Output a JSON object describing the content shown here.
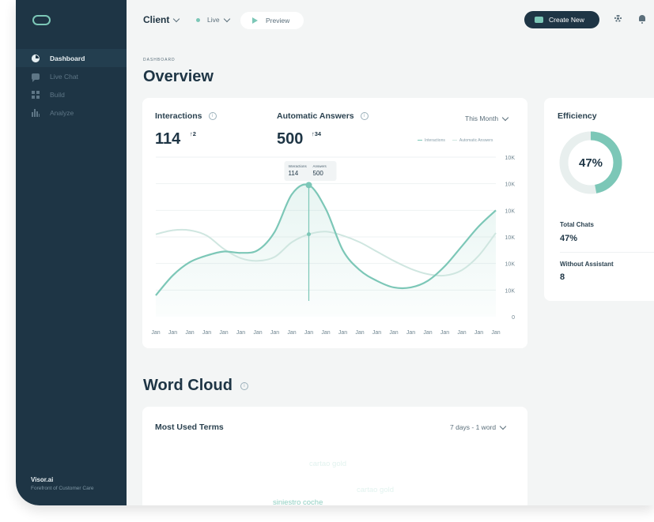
{
  "sidebar": {
    "items": [
      {
        "label": "Dashboard",
        "icon": "pie-chart-icon",
        "active": true
      },
      {
        "label": "Live Chat",
        "icon": "chat-icon"
      },
      {
        "label": "Build",
        "icon": "grid-icon"
      },
      {
        "label": "Analyze",
        "icon": "bar-chart-icon"
      }
    ],
    "brand_name": "Visor.ai",
    "brand_tagline": "Forefront of Customer Care"
  },
  "topbar": {
    "client_label": "Client",
    "status_label": "Live",
    "preview_label": "Preview",
    "create_label": "Create New"
  },
  "overview": {
    "eyebrow": "DASHBOARD",
    "title": "Overview",
    "interactions_label": "Interactions",
    "interactions_value": "114",
    "interactions_delta": "↑2",
    "auto_label": "Automatic Answers",
    "auto_value": "500",
    "auto_delta": "↑34",
    "period_label": "This Month",
    "info_glyph": "i"
  },
  "chart_data": {
    "type": "line",
    "x": [
      "Jan",
      "Jan",
      "Jan",
      "Jan",
      "Jan",
      "Jan",
      "Jan",
      "Jan",
      "Jan",
      "Jan",
      "Jan",
      "Jan",
      "Jan",
      "Jan",
      "Jan",
      "Jan",
      "Jan",
      "Jan",
      "Jan",
      "Jan",
      "Jan"
    ],
    "y_ticks": [
      "0",
      "10K",
      "10K",
      "10K",
      "10K",
      "10K",
      "10K"
    ],
    "series": [
      {
        "name": "Interactions",
        "values": [
          0.8,
          1.55,
          2.05,
          2.3,
          2.45,
          2.4,
          2.5,
          3.2,
          4.6,
          4.95,
          4.05,
          2.5,
          1.75,
          1.35,
          1.1,
          1.1,
          1.35,
          1.9,
          2.65,
          3.4,
          4.0
        ]
      },
      {
        "name": "Automatic Answers",
        "values": [
          3.1,
          3.25,
          3.25,
          3.05,
          2.55,
          2.2,
          2.1,
          2.25,
          2.8,
          3.1,
          3.2,
          3.05,
          2.8,
          2.45,
          2.1,
          1.8,
          1.6,
          1.55,
          1.75,
          2.3,
          3.15
        ]
      }
    ],
    "tooltip": {
      "labels": [
        "Interactions",
        "Answers"
      ],
      "values": [
        "114",
        "500"
      ],
      "index": 9
    },
    "colors": {
      "interactions": "#7cc7b7",
      "answers": "#cfe6e0"
    },
    "grid": true,
    "legend": "top-right"
  },
  "efficiency": {
    "title": "Efficiency",
    "percent_label": "47%",
    "fraction": 0.47,
    "total_chats_label": "Total Chats",
    "total_chats_value": "47%",
    "without_assistant_label": "Without Assistant",
    "without_assistant_value": "8"
  },
  "word_cloud": {
    "title": "Word Cloud",
    "card_title": "Most Used Terms",
    "range_label": "7 days - 1 word",
    "terms": [
      "cartao gold",
      "cartao gold",
      "siniestro coche"
    ]
  }
}
